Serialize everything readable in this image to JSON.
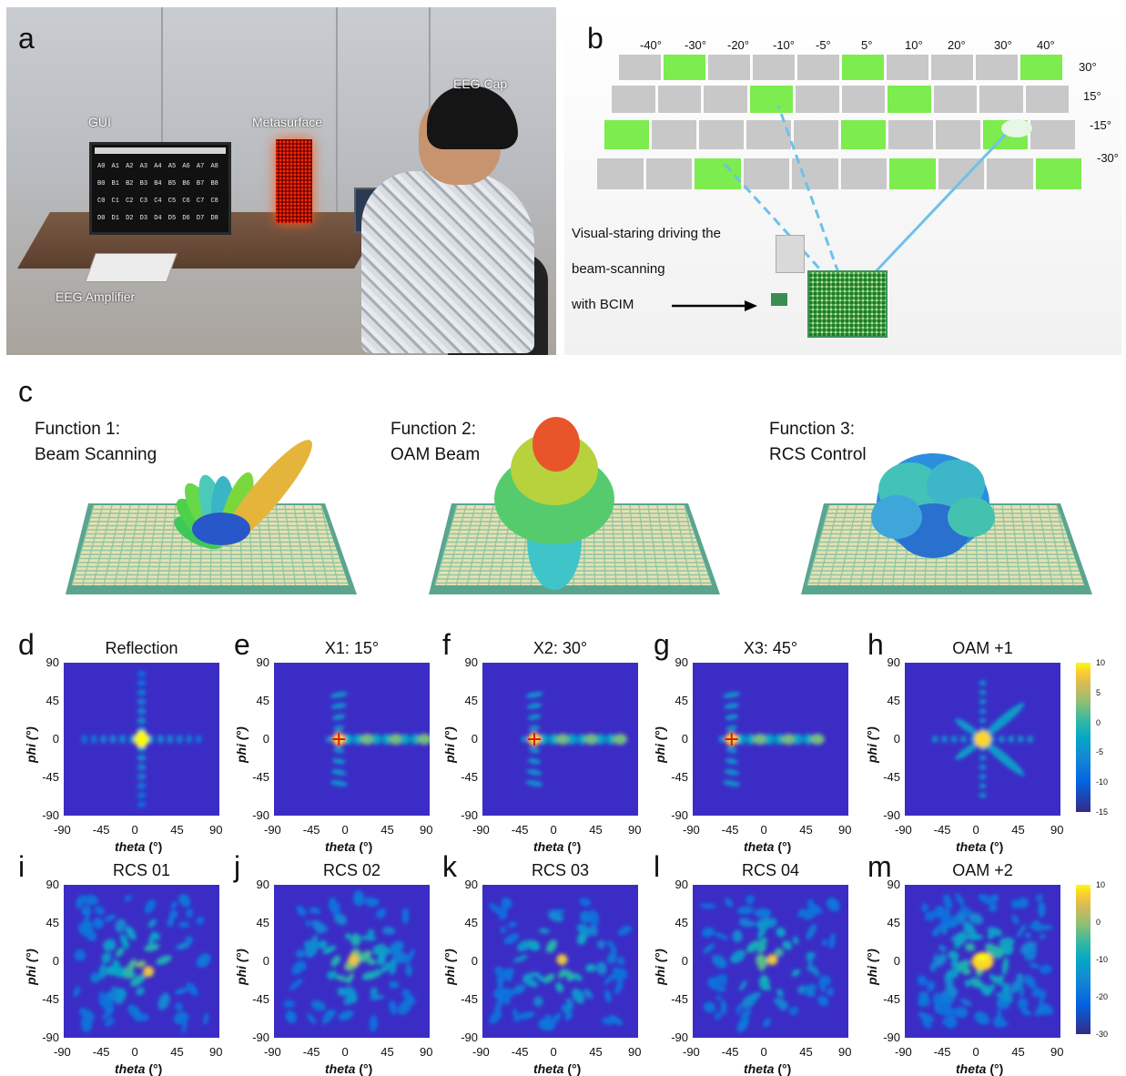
{
  "panels": {
    "a": "a",
    "b": "b",
    "c": "c",
    "d": "d",
    "e": "e",
    "f": "f",
    "g": "g",
    "h": "h",
    "i": "i",
    "j": "j",
    "k": "k",
    "l": "l",
    "m": "m"
  },
  "photo_labels": {
    "gui": "GUI",
    "metasurface": "Metasurface",
    "eeg_cap": "EEG Cap",
    "eeg_amplifier": "EEG Amplifier",
    "screen_rows": [
      [
        "A0",
        "A1",
        "A2",
        "A3",
        "A4",
        "A5",
        "A6",
        "A7",
        "A8",
        "A9"
      ],
      [
        "B0",
        "B1",
        "B2",
        "B3",
        "B4",
        "B5",
        "B6",
        "B7",
        "B8",
        "B9"
      ],
      [
        "C0",
        "C1",
        "C2",
        "C3",
        "C4",
        "C5",
        "C6",
        "C7",
        "C8",
        "C9"
      ],
      [
        "D0",
        "D1",
        "D2",
        "D3",
        "D4",
        "D5",
        "D6",
        "D7",
        "D8",
        "D9"
      ]
    ]
  },
  "beam_scan": {
    "columns": [
      "-40°",
      "-30°",
      "-20°",
      "-10°",
      "-5°",
      "5°",
      "10°",
      "20°",
      "30°",
      "40°"
    ],
    "rows": [
      "30°",
      "15°",
      "-15°",
      "-30°"
    ],
    "green_cells": [
      [
        0,
        1
      ],
      [
        0,
        5
      ],
      [
        0,
        9
      ],
      [
        1,
        3
      ],
      [
        1,
        6
      ],
      [
        2,
        0
      ],
      [
        2,
        5
      ],
      [
        2,
        8
      ],
      [
        3,
        2
      ],
      [
        3,
        6
      ],
      [
        3,
        9
      ]
    ],
    "note_lines": [
      "Visual-staring driving the",
      "beam-scanning",
      "with BCIM"
    ]
  },
  "functions": [
    {
      "line1": "Function 1:",
      "line2": "Beam Scanning"
    },
    {
      "line1": "Function 2:",
      "line2": "OAM Beam"
    },
    {
      "line1": "Function 3:",
      "line2": "RCS Control"
    }
  ],
  "axes": {
    "xlabel_var": "theta",
    "xlabel_unit": " (°)",
    "ylabel": "phi (°)",
    "xticks": [
      "-90",
      "-45",
      "0",
      "45",
      "90"
    ],
    "yticks": [
      "90",
      "45",
      "0",
      "-45",
      "-90"
    ]
  },
  "colorbars": {
    "top": [
      "10",
      "5",
      "0",
      "-5",
      "-10",
      "-15"
    ],
    "bottom": [
      "10",
      "0",
      "-10",
      "-20",
      "-30"
    ]
  },
  "chart_data": [
    {
      "type": "heatmap",
      "title": "Reflection",
      "xlabel": "theta (°)",
      "ylabel": "phi (°)",
      "xlim": [
        -90,
        90
      ],
      "ylim": [
        -90,
        90
      ],
      "main_beam": [
        0,
        0
      ]
    },
    {
      "type": "heatmap",
      "title": "X1: 15°",
      "xlabel": "theta (°)",
      "ylabel": "phi (°)",
      "xlim": [
        -90,
        90
      ],
      "ylim": [
        -90,
        90
      ],
      "marker": [
        -15,
        0
      ]
    },
    {
      "type": "heatmap",
      "title": "X2: 30°",
      "xlabel": "theta (°)",
      "ylabel": "phi (°)",
      "xlim": [
        -90,
        90
      ],
      "ylim": [
        -90,
        90
      ],
      "marker": [
        -30,
        0
      ]
    },
    {
      "type": "heatmap",
      "title": "X3: 45°",
      "xlabel": "theta (°)",
      "ylabel": "phi (°)",
      "xlim": [
        -90,
        90
      ],
      "ylim": [
        -90,
        90
      ],
      "marker": [
        -45,
        0
      ]
    },
    {
      "type": "heatmap",
      "title": "OAM +1",
      "xlabel": "theta (°)",
      "ylabel": "phi (°)",
      "xlim": [
        -90,
        90
      ],
      "ylim": [
        -90,
        90
      ],
      "colorbar": [
        -15,
        10
      ]
    },
    {
      "type": "heatmap",
      "title": "RCS 01",
      "xlabel": "theta (°)",
      "ylabel": "phi (°)",
      "xlim": [
        -90,
        90
      ],
      "ylim": [
        -90,
        90
      ]
    },
    {
      "type": "heatmap",
      "title": "RCS 02",
      "xlabel": "theta (°)",
      "ylabel": "phi (°)",
      "xlim": [
        -90,
        90
      ],
      "ylim": [
        -90,
        90
      ]
    },
    {
      "type": "heatmap",
      "title": "RCS 03",
      "xlabel": "theta (°)",
      "ylabel": "phi (°)",
      "xlim": [
        -90,
        90
      ],
      "ylim": [
        -90,
        90
      ]
    },
    {
      "type": "heatmap",
      "title": "RCS 04",
      "xlabel": "theta (°)",
      "ylabel": "phi (°)",
      "xlim": [
        -90,
        90
      ],
      "ylim": [
        -90,
        90
      ]
    },
    {
      "type": "heatmap",
      "title": "OAM +2",
      "xlabel": "theta (°)",
      "ylabel": "phi (°)",
      "xlim": [
        -90,
        90
      ],
      "ylim": [
        -90,
        90
      ],
      "colorbar": [
        -30,
        10
      ]
    }
  ]
}
